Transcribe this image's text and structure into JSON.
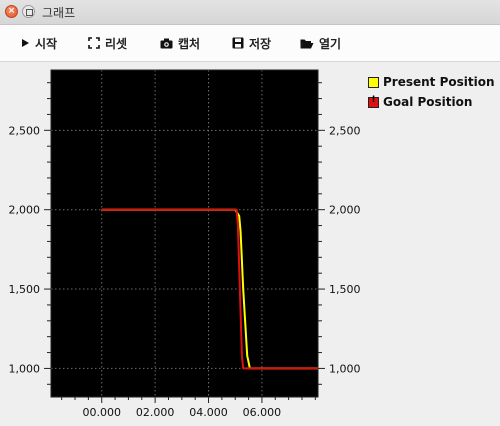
{
  "window": {
    "title": "그래프"
  },
  "toolbar": {
    "start_label": "시작",
    "reset_label": "리셋",
    "capture_label": "캡처",
    "save_label": "저장",
    "open_label": "열기"
  },
  "legend": {
    "items": [
      {
        "name": "Present Position",
        "color": "#ffff00",
        "mark": ""
      },
      {
        "name": "Goal Position",
        "color": "#dd1111",
        "mark": "!"
      }
    ]
  },
  "chart_data": {
    "type": "line",
    "background": "#000000",
    "grid": true,
    "legend_placement": "right",
    "xlim": [
      -1.9,
      8.1
    ],
    "ylim": [
      820,
      2880
    ],
    "x_ticks": [
      0,
      2,
      4,
      6
    ],
    "x_tick_labels": [
      "00.000",
      "02.000",
      "04.000",
      "06.000"
    ],
    "y_ticks": [
      1000,
      1500,
      2000,
      2500
    ],
    "y_tick_labels": [
      "1,000",
      "1,500",
      "2,000",
      "2,500"
    ],
    "series": [
      {
        "name": "Present Position",
        "color": "#ffff00",
        "x": [
          0,
          5.0,
          5.15,
          5.2,
          5.3,
          5.45,
          5.55,
          8.1
        ],
        "y": [
          2000,
          2000,
          1960,
          1860,
          1500,
          1080,
          1000,
          1000
        ]
      },
      {
        "name": "Goal Position",
        "color": "#dd1111",
        "x": [
          0,
          5.05,
          5.1,
          5.25,
          5.3,
          8.1
        ],
        "y": [
          2000,
          2000,
          1900,
          1080,
          1000,
          1000
        ]
      }
    ]
  }
}
